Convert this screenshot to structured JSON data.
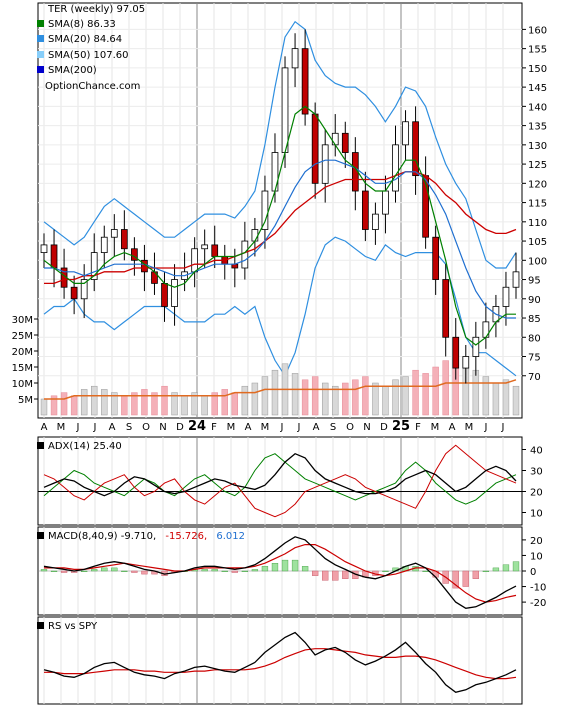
{
  "chart_data": [
    {
      "type": "candlestick",
      "ticker_label": "TER (weekly) 97.05",
      "legend": [
        {
          "label": "SMA(8) 86.33",
          "color": "#008000"
        },
        {
          "label": "SMA(20) 84.64",
          "color": "#2f8fe0"
        },
        {
          "label": "SMA(50) 107.60",
          "color": "#87cefa"
        },
        {
          "label": "SMA(200)",
          "color": "#0000cc"
        },
        {
          "label": "OptionChance.com",
          "color": ""
        }
      ],
      "price_ticks": [
        "160",
        "155",
        "150",
        "145",
        "140",
        "135",
        "130",
        "125",
        "120",
        "115",
        "110",
        "105",
        "100",
        "95",
        "90",
        "85",
        "80",
        "75",
        "70"
      ],
      "ylim": [
        65,
        164
      ],
      "volume_ticks": [
        "30M",
        "25M",
        "20M",
        "15M",
        "10M",
        "5M"
      ],
      "x_ticks": [
        "A",
        "M",
        "J",
        "J",
        "A",
        "S",
        "O",
        "N",
        "D",
        "24",
        "F",
        "M",
        "A",
        "M",
        "J",
        "J",
        "A",
        "S",
        "O",
        "N",
        "D",
        "25",
        "F",
        "M",
        "A",
        "M",
        "J",
        "J"
      ],
      "closes": [
        104,
        98,
        93,
        90,
        95,
        102,
        106,
        108,
        103,
        100,
        97,
        94,
        88,
        95,
        97,
        103,
        104,
        101,
        99,
        98,
        105,
        108,
        118,
        128,
        150,
        155,
        138,
        120,
        130,
        133,
        128,
        118,
        108,
        112,
        118,
        130,
        136,
        122,
        106,
        95,
        80,
        72,
        75,
        80,
        84,
        88,
        93,
        97
      ],
      "sma8": [
        100,
        98,
        96,
        94,
        94,
        96,
        99,
        101,
        102,
        101,
        99,
        97,
        94,
        93,
        94,
        97,
        99,
        101,
        101,
        101,
        102,
        105,
        110,
        118,
        128,
        138,
        140,
        138,
        134,
        130,
        126,
        124,
        120,
        118,
        118,
        122,
        126,
        126,
        120,
        110,
        100,
        88,
        80,
        78,
        80,
        84,
        86,
        86
      ],
      "sma20": [
        98,
        98,
        97,
        97,
        96,
        97,
        98,
        99,
        99,
        99,
        99,
        98,
        97,
        96,
        96,
        97,
        98,
        99,
        99,
        99,
        100,
        102,
        105,
        109,
        114,
        119,
        123,
        125,
        126,
        126,
        125,
        124,
        122,
        120,
        120,
        121,
        123,
        123,
        121,
        117,
        112,
        105,
        98,
        92,
        88,
        86,
        85,
        85
      ],
      "sma50": [
        94,
        94,
        95,
        95,
        96,
        96,
        97,
        97,
        97,
        98,
        98,
        98,
        98,
        98,
        98,
        99,
        99,
        100,
        100,
        101,
        102,
        103,
        105,
        107,
        110,
        113,
        115,
        117,
        119,
        120,
        121,
        121,
        121,
        121,
        121,
        122,
        123,
        123,
        122,
        120,
        117,
        115,
        112,
        110,
        108,
        107,
        107,
        108
      ],
      "bb_upper": [
        110,
        108,
        106,
        104,
        106,
        110,
        114,
        116,
        114,
        112,
        110,
        108,
        106,
        106,
        108,
        110,
        112,
        112,
        112,
        111,
        114,
        118,
        130,
        145,
        158,
        162,
        160,
        152,
        148,
        146,
        145,
        145,
        143,
        140,
        136,
        140,
        145,
        144,
        140,
        132,
        125,
        120,
        116,
        108,
        100,
        98,
        98,
        102
      ],
      "bb_lower": [
        86,
        88,
        88,
        90,
        86,
        84,
        84,
        82,
        84,
        86,
        88,
        88,
        88,
        86,
        84,
        84,
        84,
        86,
        86,
        88,
        86,
        88,
        80,
        74,
        70,
        76,
        86,
        98,
        104,
        106,
        105,
        103,
        101,
        100,
        104,
        102,
        101,
        102,
        102,
        102,
        99,
        90,
        80,
        76,
        76,
        74,
        72,
        70
      ],
      "volume": [
        5,
        6,
        7,
        6,
        8,
        9,
        8,
        7,
        6,
        7,
        8,
        7,
        9,
        7,
        6,
        7,
        6,
        7,
        8,
        7,
        9,
        10,
        12,
        14,
        16,
        13,
        11,
        12,
        10,
        9,
        10,
        11,
        12,
        10,
        9,
        11,
        12,
        14,
        13,
        15,
        17,
        20,
        18,
        14,
        12,
        10,
        11,
        9
      ],
      "volume_sma": [
        5,
        5,
        5,
        6,
        6,
        6,
        6,
        6,
        6,
        6,
        6,
        6,
        6,
        6,
        6,
        6,
        6,
        6,
        6,
        7,
        7,
        7,
        8,
        8,
        8,
        8,
        8,
        8,
        8,
        8,
        8,
        8,
        9,
        9,
        9,
        9,
        9,
        9,
        9,
        9,
        10,
        10,
        10,
        10,
        10,
        10,
        10,
        11
      ]
    },
    {
      "type": "line",
      "label": "ADX(14) 25.40",
      "y_ticks": [
        "40",
        "30",
        "20",
        "10"
      ],
      "ylim": [
        5,
        45
      ],
      "adx": [
        22,
        24,
        26,
        25,
        22,
        20,
        18,
        20,
        24,
        27,
        26,
        23,
        20,
        19,
        20,
        22,
        24,
        26,
        25,
        23,
        22,
        21,
        23,
        28,
        34,
        38,
        36,
        30,
        26,
        24,
        22,
        20,
        19,
        19,
        20,
        22,
        26,
        28,
        30,
        28,
        24,
        20,
        22,
        26,
        30,
        32,
        30,
        25
      ],
      "di_plus": [
        18,
        22,
        26,
        30,
        28,
        24,
        22,
        20,
        18,
        22,
        26,
        24,
        20,
        18,
        22,
        26,
        28,
        24,
        20,
        18,
        22,
        30,
        36,
        38,
        34,
        30,
        26,
        24,
        22,
        20,
        18,
        16,
        18,
        20,
        22,
        24,
        30,
        34,
        30,
        24,
        20,
        16,
        14,
        16,
        20,
        24,
        26,
        28
      ],
      "di_minus": [
        28,
        26,
        22,
        18,
        16,
        20,
        24,
        26,
        28,
        22,
        18,
        20,
        24,
        26,
        20,
        16,
        14,
        18,
        22,
        24,
        18,
        12,
        10,
        8,
        10,
        14,
        20,
        22,
        24,
        26,
        28,
        26,
        22,
        20,
        18,
        16,
        14,
        12,
        20,
        30,
        38,
        42,
        38,
        34,
        30,
        28,
        26,
        24
      ]
    },
    {
      "type": "line",
      "label": "MACD(8,40,9) -9.710,",
      "label_value2": "-15.726,",
      "label_value3": "6.012",
      "y_ticks": [
        "20",
        "10",
        "0",
        "-10",
        "-20"
      ],
      "ylim": [
        -27,
        27
      ],
      "macd": [
        3,
        2,
        1,
        0,
        1,
        3,
        5,
        6,
        5,
        3,
        1,
        0,
        -2,
        -1,
        0,
        2,
        3,
        3,
        2,
        1,
        2,
        4,
        8,
        13,
        18,
        22,
        20,
        14,
        8,
        4,
        1,
        -2,
        -4,
        -5,
        -3,
        0,
        3,
        5,
        2,
        -4,
        -12,
        -20,
        -24,
        -23,
        -20,
        -17,
        -13,
        -9.7
      ],
      "signal": [
        2,
        2,
        2,
        1,
        1,
        2,
        3,
        4,
        5,
        4,
        3,
        2,
        1,
        0,
        0,
        1,
        2,
        2,
        2,
        2,
        2,
        3,
        5,
        8,
        11,
        15,
        17,
        17,
        14,
        10,
        6,
        3,
        0,
        -2,
        -3,
        -2,
        0,
        2,
        2,
        0,
        -4,
        -9,
        -14,
        -18,
        -20,
        -19,
        -17,
        -15.7
      ],
      "histogram": [
        1,
        0,
        -1,
        -1,
        0,
        1,
        2,
        2,
        0,
        -1,
        -2,
        -2,
        -3,
        -1,
        0,
        1,
        1,
        1,
        0,
        -1,
        0,
        1,
        3,
        5,
        7,
        7,
        3,
        -3,
        -6,
        -6,
        -5,
        -5,
        -4,
        -3,
        0,
        2,
        3,
        3,
        0,
        -4,
        -8,
        -11,
        -10,
        -5,
        0,
        2,
        4,
        6
      ]
    },
    {
      "type": "line",
      "label": "RS vs SPY",
      "rs": [
        50,
        48,
        45,
        44,
        47,
        52,
        55,
        56,
        52,
        48,
        46,
        45,
        43,
        47,
        49,
        52,
        53,
        51,
        49,
        48,
        52,
        56,
        64,
        70,
        76,
        80,
        72,
        62,
        66,
        68,
        64,
        58,
        54,
        57,
        61,
        66,
        72,
        64,
        55,
        48,
        38,
        32,
        34,
        38,
        40,
        43,
        46,
        50
      ],
      "rs_sma": [
        48,
        48,
        47,
        47,
        47,
        48,
        49,
        50,
        50,
        50,
        49,
        49,
        48,
        48,
        48,
        49,
        49,
        50,
        50,
        50,
        50,
        51,
        53,
        56,
        60,
        63,
        66,
        67,
        67,
        66,
        65,
        64,
        62,
        61,
        60,
        60,
        61,
        61,
        60,
        58,
        55,
        52,
        49,
        46,
        44,
        43,
        43,
        44
      ]
    }
  ]
}
